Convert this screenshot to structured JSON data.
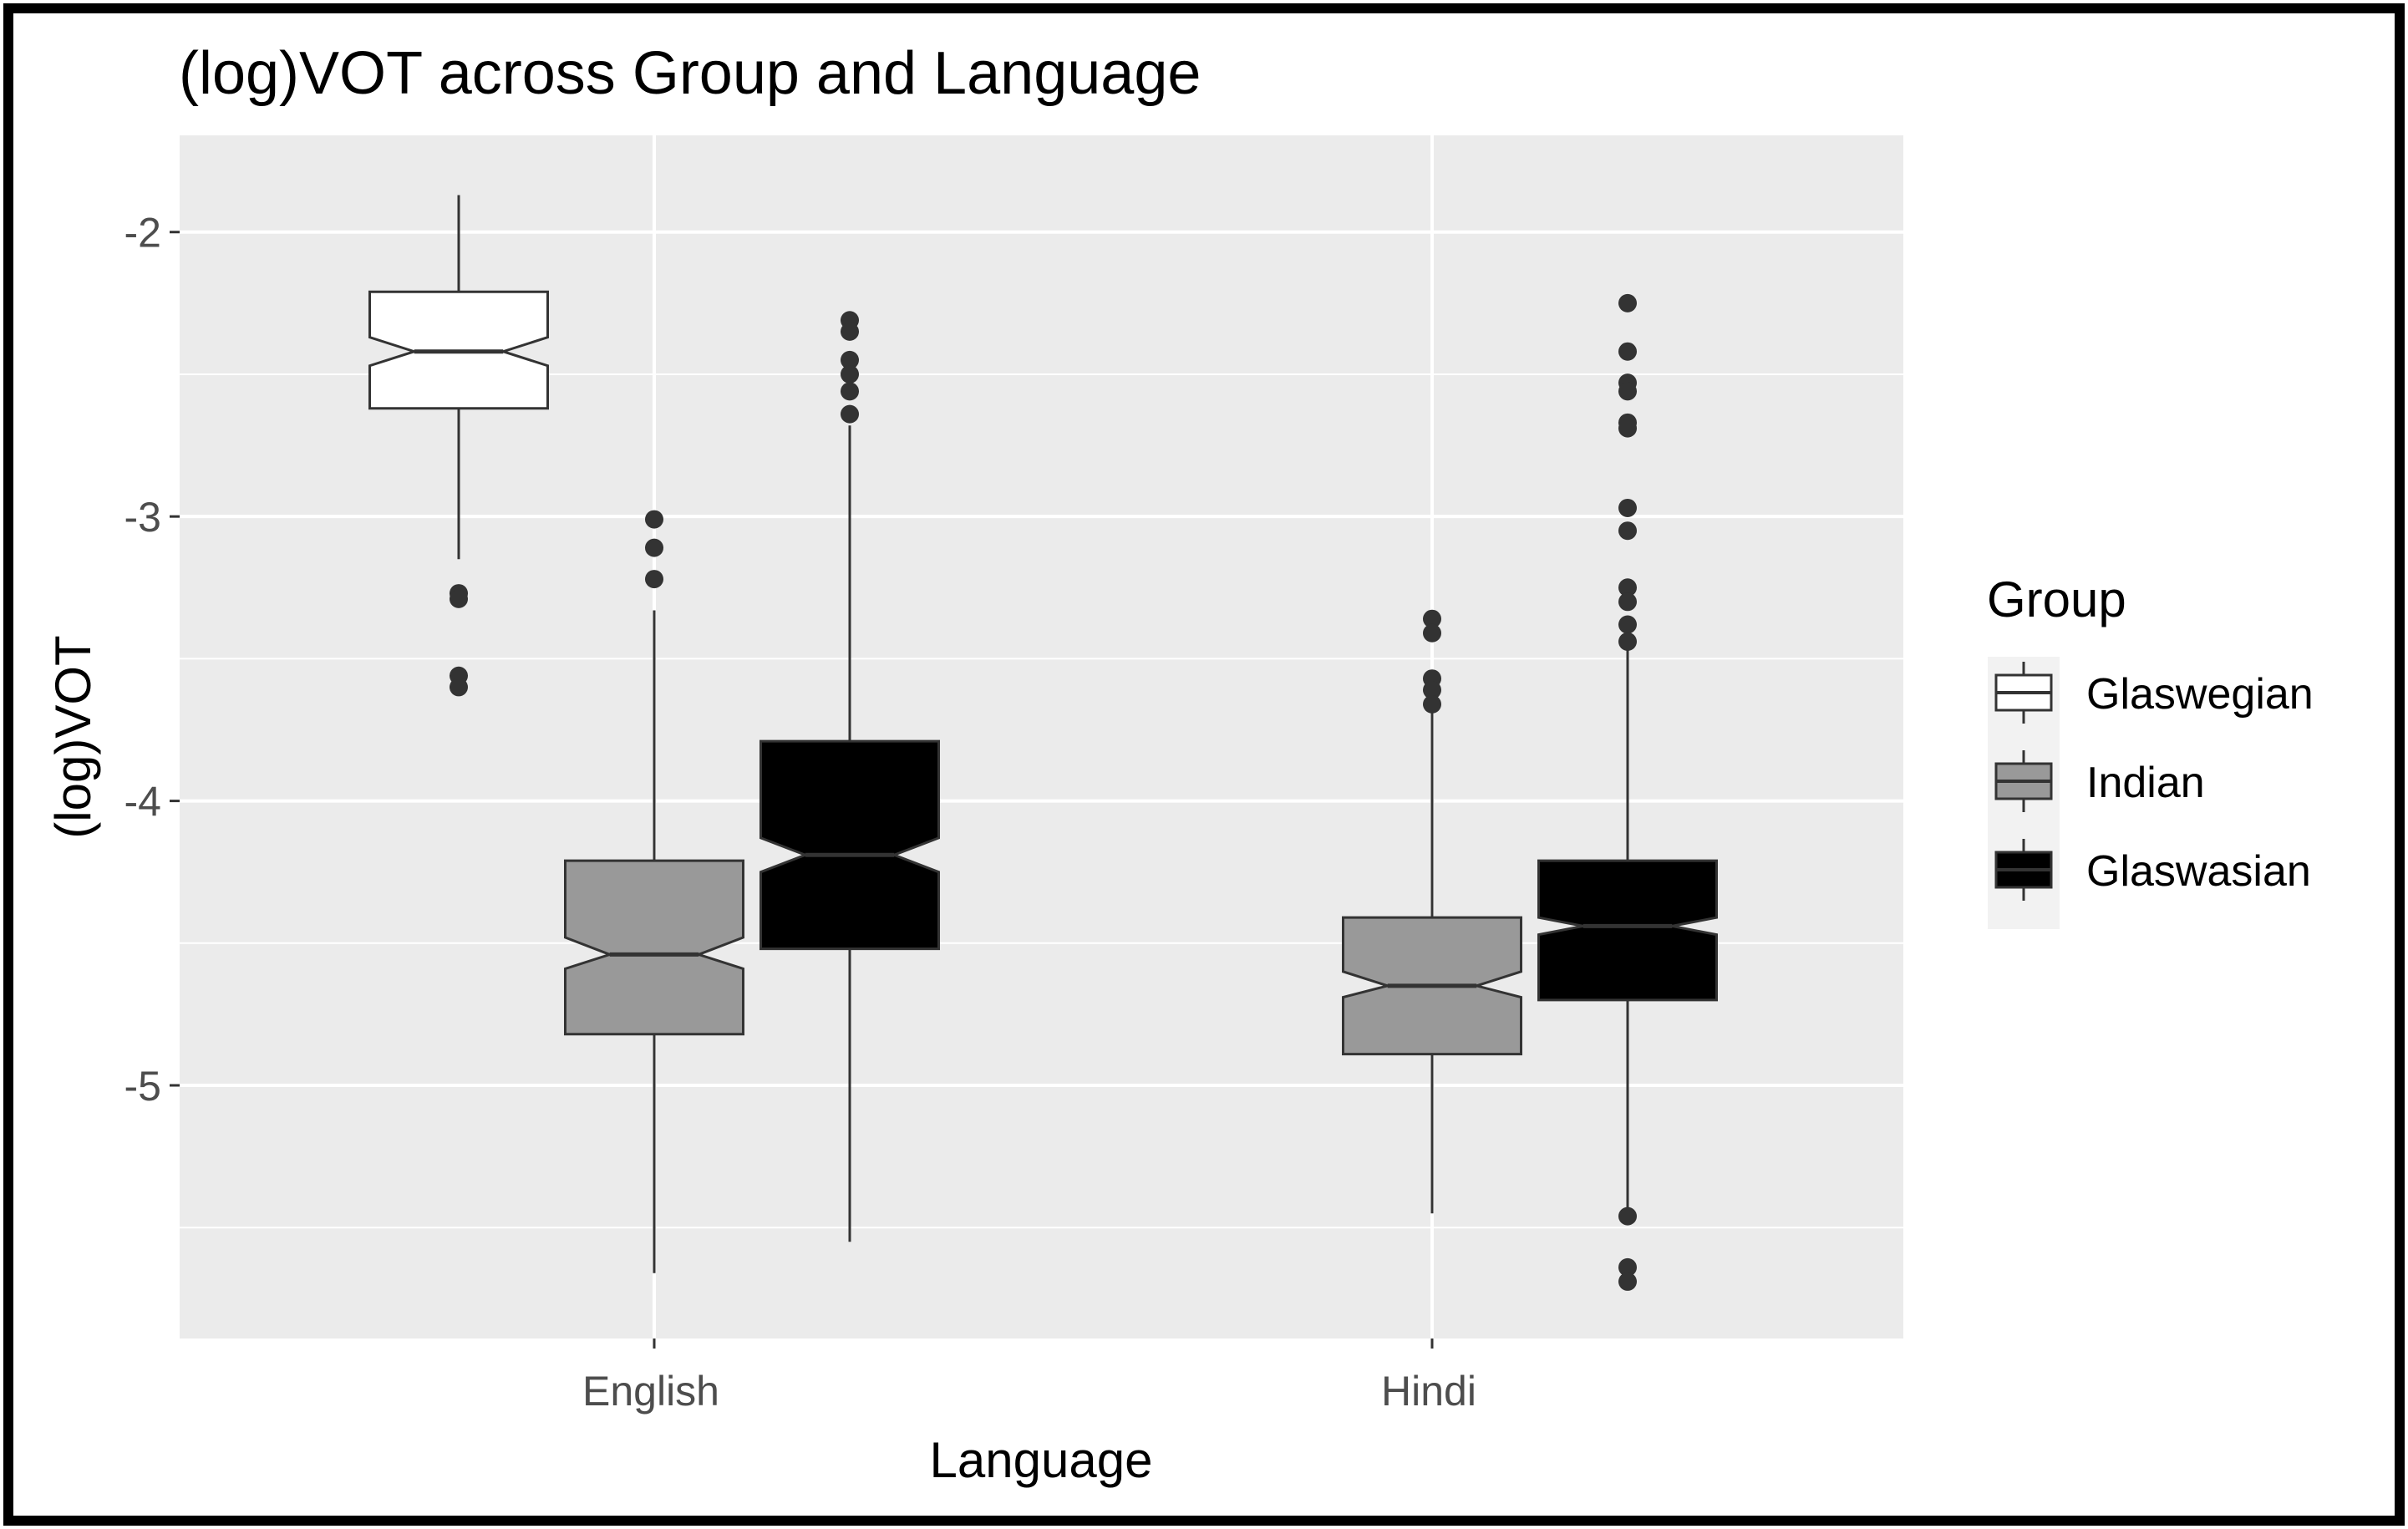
{
  "chart_data": {
    "type": "boxplot",
    "title": "(log)VOT across Group and Language",
    "xlabel": "Language",
    "ylabel": "(log)VOT",
    "categories": [
      "English",
      "Hindi"
    ],
    "ylim": [
      -5.89,
      -1.66
    ],
    "yticks": [
      -2,
      -3,
      -4,
      -5
    ],
    "ytick_labels": [
      "-2",
      "-3",
      "-4",
      "-5"
    ],
    "notched": true,
    "grid": true,
    "legend": {
      "title": "Group",
      "position": "right",
      "entries": [
        "Glaswegian",
        "Indian",
        "Glaswasian"
      ]
    },
    "colors": {
      "Glaswegian": "#ffffff",
      "Indian": "#999999",
      "Glaswasian": "#000000",
      "panel": "#ebebeb",
      "grid": "#ffffff",
      "outline": "#333333",
      "outlier": "#333333"
    },
    "series": [
      {
        "name": "Glaswegian",
        "boxes": [
          {
            "category": "English",
            "whisker_low": -3.15,
            "q1": -2.62,
            "median": -2.42,
            "q3": -2.21,
            "whisker_high": -1.87,
            "notch_low": -2.47,
            "notch_high": -2.37,
            "outliers": [
              -3.27,
              -3.29,
              -3.56,
              -3.6
            ]
          }
        ]
      },
      {
        "name": "Indian",
        "boxes": [
          {
            "category": "English",
            "whisker_low": -5.66,
            "q1": -4.82,
            "median": -4.54,
            "q3": -4.21,
            "whisker_high": -3.33,
            "notch_low": -4.59,
            "notch_high": -4.48,
            "outliers": [
              -3.01,
              -3.11,
              -3.22
            ]
          },
          {
            "category": "Hindi",
            "whisker_low": -5.45,
            "q1": -4.89,
            "median": -4.65,
            "q3": -4.41,
            "whisker_high": -3.68,
            "notch_low": -4.69,
            "notch_high": -4.6,
            "outliers": [
              -3.36,
              -3.41,
              -3.57,
              -3.61,
              -3.66
            ]
          }
        ]
      },
      {
        "name": "Glaswasian",
        "boxes": [
          {
            "category": "English",
            "whisker_low": -5.55,
            "q1": -4.52,
            "median": -4.19,
            "q3": -3.79,
            "whisker_high": -2.68,
            "notch_low": -4.25,
            "notch_high": -4.13,
            "outliers": [
              -2.31,
              -2.35,
              -2.45,
              -2.5,
              -2.56,
              -2.64
            ]
          },
          {
            "category": "Hindi",
            "whisker_low": -5.45,
            "q1": -4.7,
            "median": -4.44,
            "q3": -4.21,
            "whisker_high": -3.45,
            "notch_low": -4.47,
            "notch_high": -4.41,
            "outliers": [
              -2.25,
              -2.42,
              -2.53,
              -2.56,
              -2.67,
              -2.69,
              -2.97,
              -3.05,
              -3.25,
              -3.3,
              -3.38,
              -3.44,
              -5.46,
              -5.64,
              -5.69
            ]
          }
        ]
      }
    ]
  }
}
